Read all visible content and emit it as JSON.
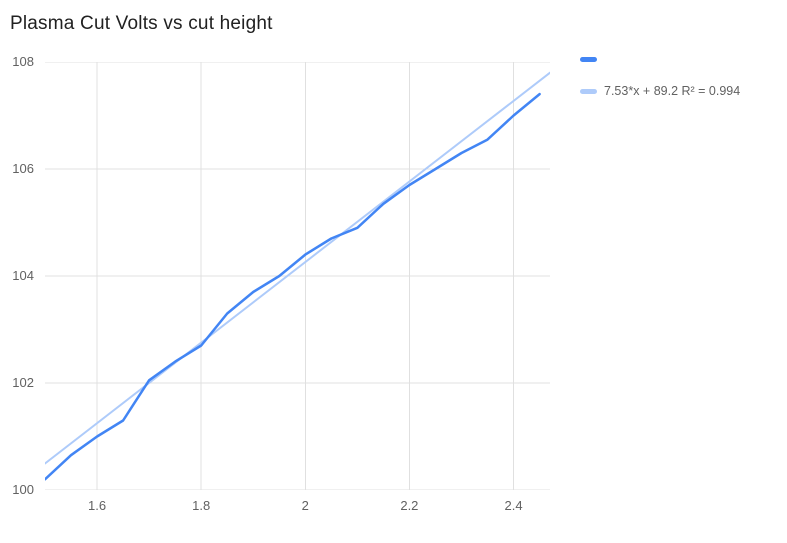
{
  "title": "Plasma Cut Volts vs cut height",
  "legend": {
    "series_label": "",
    "trend_label": "7.53*x + 89.2 R² = 0.994"
  },
  "colors": {
    "series_line": "#4285f4",
    "trendline": "#aecbfa",
    "gridline": "#e0e0e0",
    "axis_label": "#616161",
    "title_text": "#212121",
    "background": "#ffffff"
  },
  "chart_data": {
    "type": "line",
    "title": "Plasma Cut Volts vs cut height",
    "xlabel": "",
    "ylabel": "",
    "xlim": [
      1.5,
      2.47
    ],
    "ylim": [
      100,
      108
    ],
    "grid": true,
    "legend_position": "right-top",
    "x_ticks": [
      1.6,
      1.8,
      2,
      2.2,
      2.4
    ],
    "x_tick_labels": [
      "1.6",
      "1.8",
      "2",
      "2.2",
      "2.4"
    ],
    "y_ticks": [
      100,
      102,
      104,
      106,
      108
    ],
    "y_tick_labels": [
      "100",
      "102",
      "104",
      "106",
      "108"
    ],
    "x": [
      1.5,
      1.55,
      1.6,
      1.65,
      1.7,
      1.75,
      1.8,
      1.85,
      1.9,
      1.95,
      2.0,
      2.05,
      2.1,
      2.15,
      2.2,
      2.25,
      2.3,
      2.35,
      2.4,
      2.45
    ],
    "series": [
      {
        "name": "",
        "color": "#4285f4",
        "values": [
          100.2,
          100.65,
          101.0,
          101.3,
          102.05,
          102.4,
          102.7,
          103.3,
          103.7,
          104.0,
          104.4,
          104.7,
          104.9,
          105.35,
          105.7,
          106.0,
          106.3,
          106.55,
          107.0,
          107.4
        ]
      },
      {
        "name": "7.53*x + 89.2 R² = 0.994",
        "color": "#aecbfa",
        "trendline": true,
        "equation": {
          "slope": 7.53,
          "intercept": 89.2,
          "r2": 0.994
        }
      }
    ]
  }
}
